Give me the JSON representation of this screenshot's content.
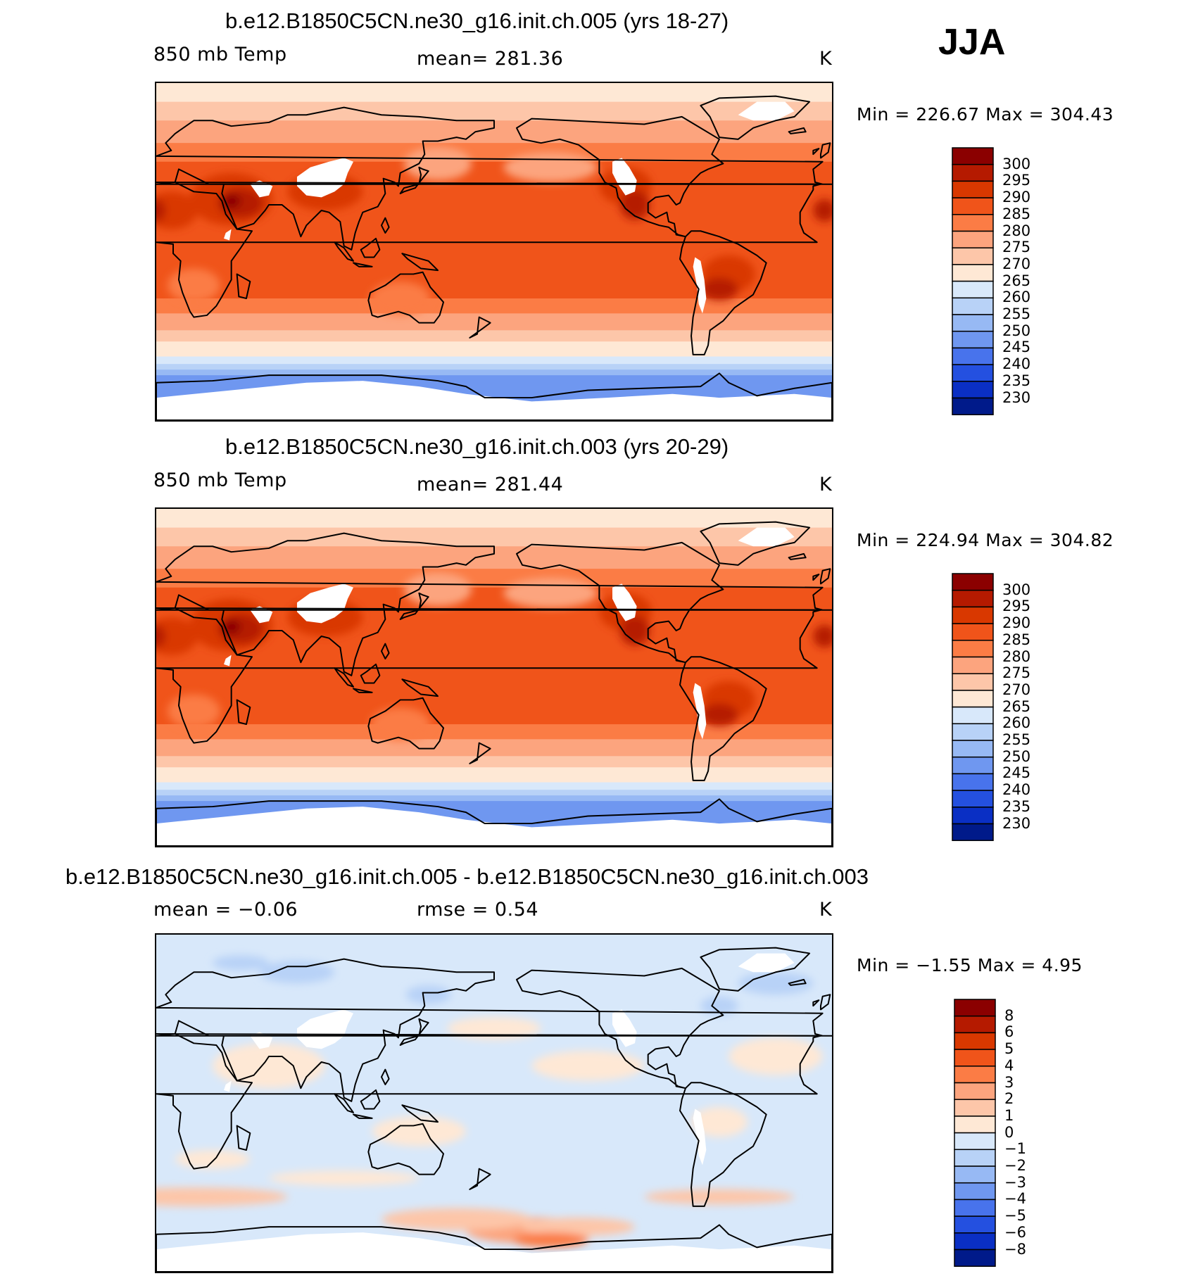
{
  "season": "JJA",
  "panels": [
    {
      "title": "b.e12.B1850C5CN.ne30_g16.init.ch.005 (yrs 18-27)",
      "left_label": "850 mb Temp",
      "center_label": "mean=  281.36",
      "units": "K",
      "min_max": "Min  =  226.67  Max  =  304.43",
      "kind": "abs"
    },
    {
      "title": "b.e12.B1850C5CN.ne30_g16.init.ch.003 (yrs 20-29)",
      "left_label": "850 mb Temp",
      "center_label": "mean=  281.44",
      "units": "K",
      "min_max": "Min  =  224.94  Max  =  304.82",
      "kind": "abs"
    },
    {
      "title": "b.e12.B1850C5CN.ne30_g16.init.ch.005 - b.e12.B1850C5CN.ne30_g16.init.ch.003",
      "left_label": "mean  =    −0.06",
      "center_label": "rmse  =     0.54",
      "units": "K",
      "min_max": "Min  =    −1.55  Max  =     4.95",
      "kind": "diff"
    }
  ],
  "colorbars": {
    "abs": {
      "labels": [
        "300",
        "295",
        "290",
        "285",
        "280",
        "275",
        "270",
        "265",
        "260",
        "255",
        "250",
        "245",
        "240",
        "235",
        "230"
      ],
      "colors": [
        "#8b0000",
        "#b51a00",
        "#d93800",
        "#f0541a",
        "#fb7c45",
        "#fca47e",
        "#fdc6a9",
        "#fee8d5",
        "#d8e8fa",
        "#b8d2f7",
        "#97b9f4",
        "#6f97f0",
        "#4873ec",
        "#2450e0",
        "#0a2fc4",
        "#001a8a"
      ]
    },
    "diff": {
      "labels": [
        "8",
        "6",
        "5",
        "4",
        "3",
        "2",
        "1",
        "0",
        "−1",
        "−2",
        "−3",
        "−4",
        "−5",
        "−6",
        "−8"
      ],
      "colors": [
        "#8b0000",
        "#b51a00",
        "#d93800",
        "#f0541a",
        "#fb7c45",
        "#fca47e",
        "#fdc6a9",
        "#fee8d5",
        "#d8e8fa",
        "#b8d2f7",
        "#97b9f4",
        "#6f97f0",
        "#4873ec",
        "#2450e0",
        "#0a2fc4",
        "#001a8a"
      ]
    }
  }
}
